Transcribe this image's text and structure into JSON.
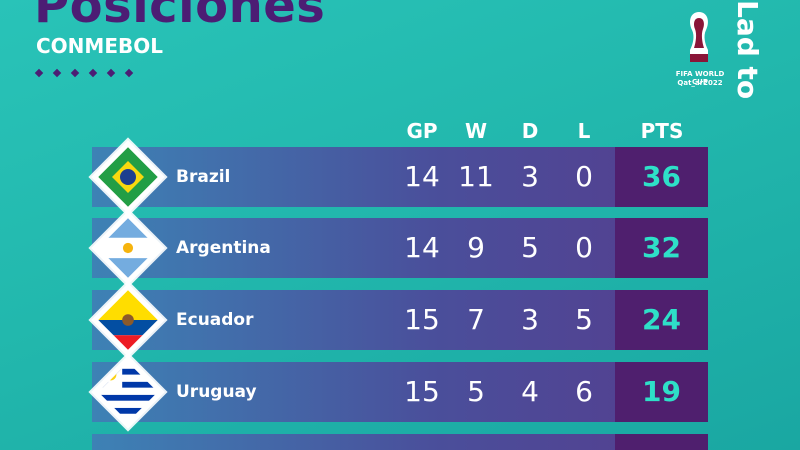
{
  "header": {
    "title": "Posiciones",
    "subtitle": "CONMEBOL",
    "logo_line1": "FIFA WORLD CUP",
    "logo_line2": "Qat_ar2022",
    "side_text": "Lad to"
  },
  "table": {
    "columns": [
      "GP",
      "W",
      "D",
      "L",
      "PTS"
    ],
    "rows": [
      {
        "team": "Brazil",
        "flag": "brazil-flag-icon",
        "gp": "14",
        "w": "11",
        "d": "3",
        "l": "0",
        "pts": "36"
      },
      {
        "team": "Argentina",
        "flag": "argentina-flag-icon",
        "gp": "14",
        "w": "9",
        "d": "5",
        "l": "0",
        "pts": "32"
      },
      {
        "team": "Ecuador",
        "flag": "ecuador-flag-icon",
        "gp": "15",
        "w": "7",
        "d": "3",
        "l": "5",
        "pts": "24"
      },
      {
        "team": "Uruguay",
        "flag": "uruguay-flag-icon",
        "gp": "15",
        "w": "5",
        "d": "4",
        "l": "6",
        "pts": "19"
      }
    ]
  },
  "colors": {
    "background": "#22b8ad",
    "title": "#4c1d74",
    "pts_cell": "#4f1f6e",
    "pts_text": "#2ee0c8"
  }
}
